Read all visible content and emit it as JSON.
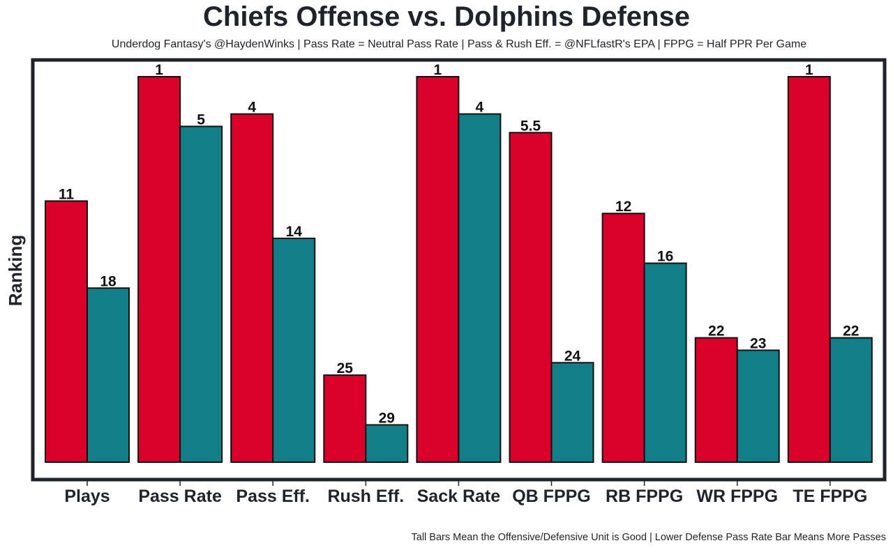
{
  "chart_data": {
    "type": "bar",
    "title": "Chiefs Offense vs. Dolphins Defense",
    "subtitle": "Underdog Fantasy's @HaydenWinks | Pass Rate = Neutral Pass Rate | Pass & Rush Eff. = @NFLfastR's EPA | FPPG = Half PPR Per Game",
    "footnote": "Tall Bars Mean the Offensive/Defensive Unit is Good | Lower Defense Pass Rate Bar Means More Passes",
    "xlabel": "",
    "ylabel": "Ranking",
    "y_inverted_rank": true,
    "ylim": [
      32,
      1
    ],
    "grid": false,
    "legend": "none",
    "categories": [
      "Plays",
      "Pass Rate",
      "Pass Eff.",
      "Rush Eff.",
      "Sack Rate",
      "QB FPPG",
      "RB FPPG",
      "WR FPPG",
      "TE FPPG"
    ],
    "series": [
      {
        "name": "Chiefs Offense",
        "color": "#d9002a",
        "values": [
          11,
          1,
          4,
          25,
          1,
          5.5,
          12,
          22,
          1
        ]
      },
      {
        "name": "Dolphins Defense",
        "color": "#127e88",
        "values": [
          18,
          5,
          14,
          29,
          4,
          24,
          16,
          23,
          22
        ]
      }
    ]
  }
}
